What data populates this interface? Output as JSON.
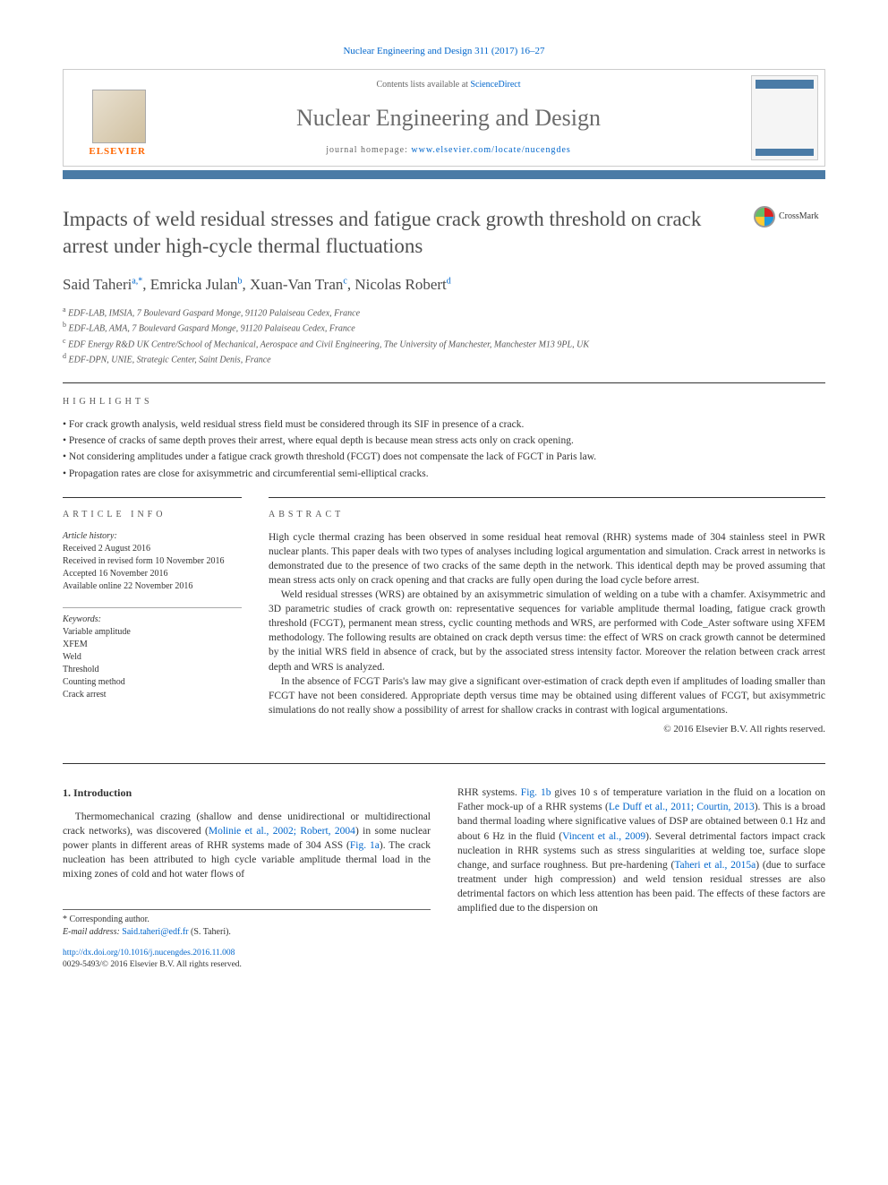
{
  "journal_ref": "Nuclear Engineering and Design 311 (2017) 16–27",
  "header": {
    "contents_prefix": "Contents lists available at ",
    "contents_link": "ScienceDirect",
    "journal_title": "Nuclear Engineering and Design",
    "homepage_prefix": "journal homepage: ",
    "homepage_url": "www.elsevier.com/locate/nucengdes",
    "publisher": "ELSEVIER",
    "accent_color": "#4a7ba6",
    "link_color": "#0066cc"
  },
  "crossmark_label": "CrossMark",
  "title": "Impacts of weld residual stresses and fatigue crack growth threshold on crack arrest under high-cycle thermal fluctuations",
  "authors_html": "Said Taheri<sup>a,*</sup>, Emricka Julan<sup>b</sup>, Xuan-Van Tran<sup>c</sup>, Nicolas Robert<sup>d</sup>",
  "affiliations": [
    "a EDF-LAB, IMSIA, 7 Boulevard Gaspard Monge, 91120 Palaiseau Cedex, France",
    "b EDF-LAB, AMA, 7 Boulevard Gaspard Monge, 91120 Palaiseau Cedex, France",
    "c EDF Energy R&D UK Centre/School of Mechanical, Aerospace and Civil Engineering, The University of Manchester, Manchester M13 9PL, UK",
    "d EDF-DPN, UNIE, Strategic Center, Saint Denis, France"
  ],
  "highlights_head": "HIGHLIGHTS",
  "highlights": [
    "For crack growth analysis, weld residual stress field must be considered through its SIF in presence of a crack.",
    "Presence of cracks of same depth proves their arrest, where equal depth is because mean stress acts only on crack opening.",
    "Not considering amplitudes under a fatigue crack growth threshold (FCGT) does not compensate the lack of FGCT in Paris law.",
    "Propagation rates are close for axisymmetric and circumferential semi-elliptical cracks."
  ],
  "info_head": "ARTICLE INFO",
  "history_head": "Article history:",
  "history": [
    "Received 2 August 2016",
    "Received in revised form 10 November 2016",
    "Accepted 16 November 2016",
    "Available online 22 November 2016"
  ],
  "keywords_head": "Keywords:",
  "keywords": [
    "Variable amplitude",
    "XFEM",
    "Weld",
    "Threshold",
    "Counting method",
    "Crack arrest"
  ],
  "abstract_head": "ABSTRACT",
  "abstract_paras": [
    "High cycle thermal crazing has been observed in some residual heat removal (RHR) systems made of 304 stainless steel in PWR nuclear plants. This paper deals with two types of analyses including logical argumentation and simulation. Crack arrest in networks is demonstrated due to the presence of two cracks of the same depth in the network. This identical depth may be proved assuming that mean stress acts only on crack opening and that cracks are fully open during the load cycle before arrest.",
    "Weld residual stresses (WRS) are obtained by an axisymmetric simulation of welding on a tube with a chamfer. Axisymmetric and 3D parametric studies of crack growth on: representative sequences for variable amplitude thermal loading, fatigue crack growth threshold (FCGT), permanent mean stress, cyclic counting methods and WRS, are performed with Code_Aster software using XFEM methodology. The following results are obtained on crack depth versus time: the effect of WRS on crack growth cannot be determined by the initial WRS field in absence of crack, but by the associated stress intensity factor. Moreover the relation between crack arrest depth and WRS is analyzed.",
    "In the absence of FCGT Paris's law may give a significant over-estimation of crack depth even if amplitudes of loading smaller than FCGT have not been considered. Appropriate depth versus time may be obtained using different values of FCGT, but axisymmetric simulations do not really show a possibility of arrest for shallow cracks in contrast with logical argumentations."
  ],
  "copyright": "© 2016 Elsevier B.V. All rights reserved.",
  "intro_head": "1. Introduction",
  "intro_left": "Thermomechanical crazing (shallow and dense unidirectional or multidirectional crack networks), was discovered (<a>Molinie et al., 2002; Robert, 2004</a>) in some nuclear power plants in different areas of RHR systems made of 304 ASS (<a>Fig. 1a</a>). The crack nucleation has been attributed to high cycle variable amplitude thermal load in the mixing zones of cold and hot water flows of",
  "intro_right": "RHR systems. <a>Fig. 1b</a> gives 10 s of temperature variation in the fluid on a location on Father mock-up of a RHR systems (<a>Le Duff et al., 2011; Courtin, 2013</a>). This is a broad band thermal loading where significative values of DSP are obtained between 0.1 Hz and about 6 Hz in the fluid (<a>Vincent et al., 2009</a>). Several detrimental factors impact crack nucleation in RHR systems such as stress singularities at welding toe, surface slope change, and surface roughness. But pre-hardening (<a>Taheri et al., 2015a</a>) (due to surface treatment under high compression) and weld tension residual stresses are also detrimental factors on which less attention has been paid. The effects of these factors are amplified due to the dispersion on",
  "corr_label": "* Corresponding author.",
  "email_label": "E-mail address:",
  "email": "Said.taheri@edf.fr",
  "email_who": "(S. Taheri).",
  "doi": "http://dx.doi.org/10.1016/j.nucengdes.2016.11.008",
  "issn_line": "0029-5493/© 2016 Elsevier B.V. All rights reserved."
}
